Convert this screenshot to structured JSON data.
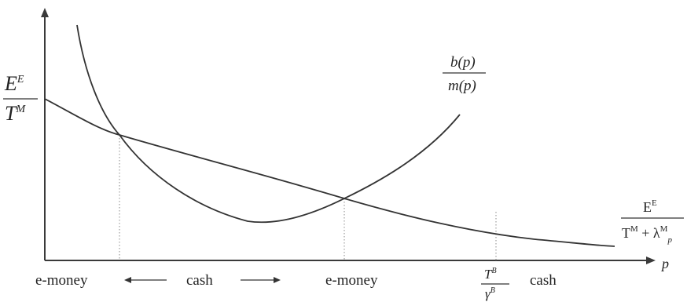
{
  "labels": {
    "y_axis": {
      "numerator_base": "E",
      "numerator_sup": "E",
      "denominator_base": "T",
      "denominator_sup": "M"
    },
    "curve_ratio": {
      "numerator": "b(p)",
      "denominator": "m(p)"
    },
    "curve_right": {
      "numerator_base": "E",
      "numerator_sup": "E",
      "denominator_t": "T",
      "denominator_t_sup": "M",
      "denominator_plus": " + λ",
      "denominator_lambda_sup": "M",
      "denominator_lambda_sub": "p"
    },
    "x_axis": "p",
    "threshold": {
      "numerator_base": "T",
      "numerator_sup": "B",
      "denominator_base": "γ",
      "denominator_sup": "B"
    }
  },
  "regions": {
    "left": "e-money",
    "arrow_left": "⟵",
    "middle": "cash",
    "arrow_right": "⟶",
    "center": "e-money",
    "right": "cash"
  }
}
